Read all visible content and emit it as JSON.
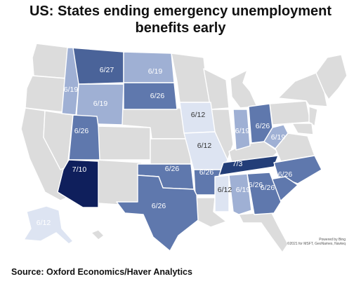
{
  "title_line1": "US: States ending emergency unemployment",
  "title_line2": "benefits early",
  "source": "Source: Oxford Economics/Haver Analytics",
  "credit_line1": "Powered by Bing",
  "credit_line2": "©2021 for MSFT, GeoNames, Navteq",
  "colors": {
    "base": "#dcdcdc",
    "date_6_12": "#dde4f2",
    "date_6_19": "#9fb0d4",
    "date_6_26": "#5f78ad",
    "date_6_27": "#4a6399",
    "date_7_3": "#233e78",
    "date_7_10": "#0f1f5c"
  },
  "states": [
    {
      "name": "Montana",
      "date": "6/27"
    },
    {
      "name": "North Dakota",
      "date": "6/19"
    },
    {
      "name": "Idaho",
      "date": "6/19"
    },
    {
      "name": "Wyoming",
      "date": "6/19"
    },
    {
      "name": "South Dakota",
      "date": "6/26"
    },
    {
      "name": "Iowa",
      "date": "6/12"
    },
    {
      "name": "Utah",
      "date": "6/26"
    },
    {
      "name": "Missouri",
      "date": "6/12"
    },
    {
      "name": "Indiana",
      "date": "6/19"
    },
    {
      "name": "Ohio",
      "date": "6/26"
    },
    {
      "name": "West Virginia",
      "date": "6/19"
    },
    {
      "name": "Arizona",
      "date": "7/10"
    },
    {
      "name": "Oklahoma",
      "date": "6/26"
    },
    {
      "name": "Arkansas",
      "date": "6/26"
    },
    {
      "name": "Tennessee",
      "date": "7/3"
    },
    {
      "name": "North Carolina",
      "date": "6/26"
    },
    {
      "name": "South Carolina",
      "date": "6/26"
    },
    {
      "name": "Mississippi",
      "date": "6/12"
    },
    {
      "name": "Alabama",
      "date": "6/19"
    },
    {
      "name": "Georgia",
      "date": "6/26"
    },
    {
      "name": "Texas",
      "date": "6/26"
    },
    {
      "name": "Alaska",
      "date": "6/12"
    }
  ]
}
